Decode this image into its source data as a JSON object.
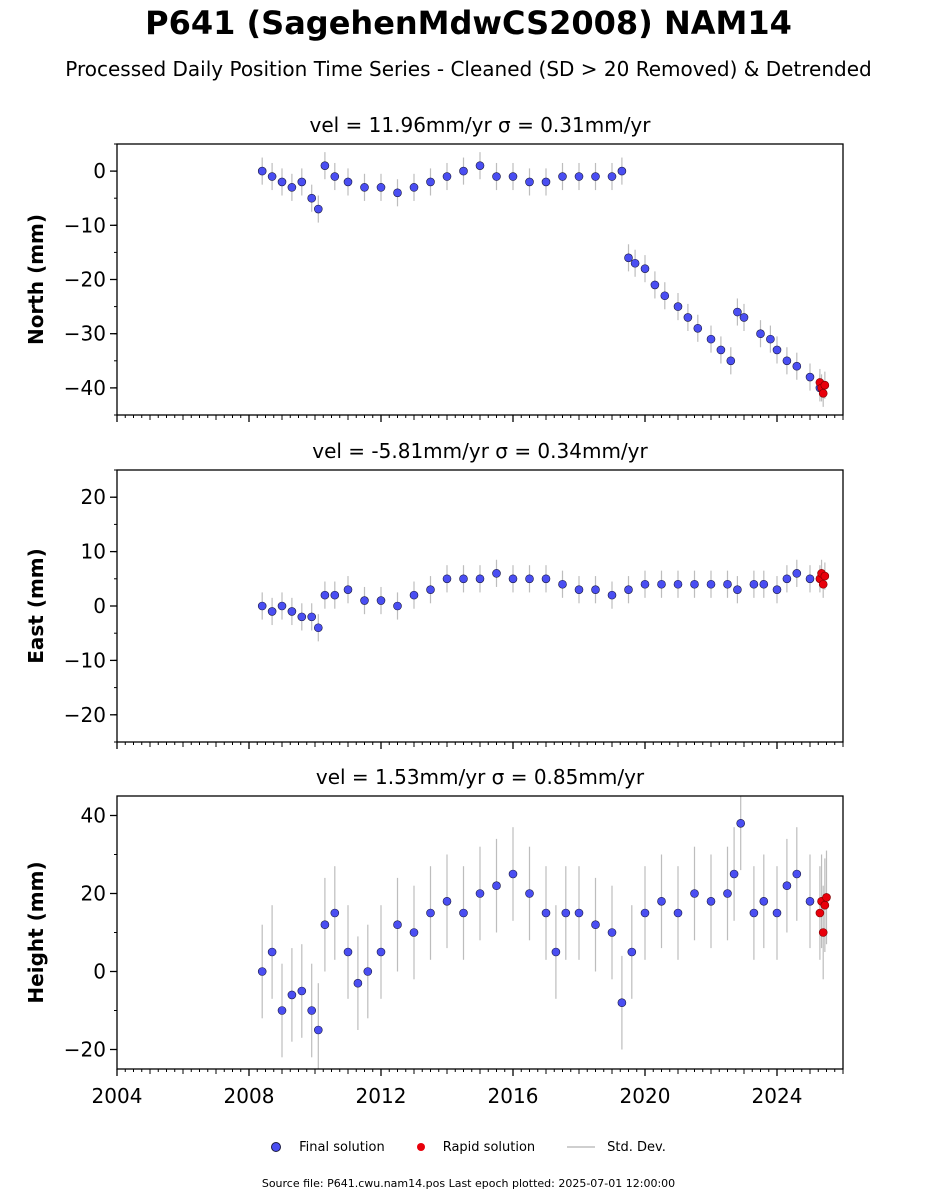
{
  "title": "P641 (SagehenMdwCS2008) NAM14",
  "subtitle": "Processed Daily Position Time Series - Cleaned (SD > 20 Removed) & Detrended",
  "legend": {
    "final_label": "Final solution",
    "rapid_label": "Rapid solution",
    "std_label": "Std. Dev."
  },
  "footer": "Source file: P641.cwu.nam14.pos  Last epoch plotted: 2025-07-01 12:00:00",
  "colors": {
    "final": "#4a4ef2",
    "final_edge": "#1a1a40",
    "rapid": "#e8000b",
    "std_dev": "#bdbdbd"
  },
  "chart_data": [
    {
      "type": "scatter",
      "title": "vel = 11.96mm/yr   σ = 0.31mm/yr",
      "ylabel": "North (mm)",
      "xlim": [
        2004,
        2026
      ],
      "ylim": [
        -45,
        5
      ],
      "yticks": [
        0,
        -10,
        -20,
        -30,
        -40
      ],
      "ytick_labels": [
        "0",
        "−10",
        "−20",
        "−30",
        "−40"
      ],
      "series": [
        {
          "name": "Final solution",
          "x": [
            2008.4,
            2008.7,
            2009.0,
            2009.3,
            2009.6,
            2009.9,
            2010.1,
            2010.3,
            2010.6,
            2011.0,
            2011.5,
            2012.0,
            2012.5,
            2013.0,
            2013.5,
            2014.0,
            2014.5,
            2015.0,
            2015.5,
            2016.0,
            2016.5,
            2017.0,
            2017.5,
            2018.0,
            2018.5,
            2019.0,
            2019.3,
            2019.5,
            2019.7,
            2020.0,
            2020.3,
            2020.6,
            2021.0,
            2021.3,
            2021.6,
            2022.0,
            2022.3,
            2022.6,
            2022.8,
            2023.0,
            2023.5,
            2023.8,
            2024.0,
            2024.3,
            2024.6,
            2025.0,
            2025.3
          ],
          "y": [
            0,
            -1,
            -2,
            -3,
            -2,
            -5,
            -7,
            1,
            -1,
            -2,
            -3,
            -3,
            -4,
            -3,
            -2,
            -1,
            0,
            1,
            -1,
            -1,
            -2,
            -2,
            -1,
            -1,
            -1,
            -1,
            0,
            -16,
            -17,
            -18,
            -21,
            -23,
            -25,
            -27,
            -29,
            -31,
            -33,
            -35,
            -26,
            -27,
            -30,
            -31,
            -33,
            -35,
            -36,
            -38,
            -40
          ]
        },
        {
          "name": "Rapid solution",
          "x": [
            2025.3,
            2025.35,
            2025.4,
            2025.45
          ],
          "y": [
            -39,
            -40,
            -41,
            -39.5
          ]
        }
      ]
    },
    {
      "type": "scatter",
      "title": "vel = -5.81mm/yr   σ = 0.34mm/yr",
      "ylabel": "East (mm)",
      "xlim": [
        2004,
        2026
      ],
      "ylim": [
        -25,
        25
      ],
      "yticks": [
        20,
        10,
        0,
        -10,
        -20
      ],
      "ytick_labels": [
        "20",
        "10",
        "0",
        "−10",
        "−20"
      ],
      "series": [
        {
          "name": "Final solution",
          "x": [
            2008.4,
            2008.7,
            2009.0,
            2009.3,
            2009.6,
            2009.9,
            2010.1,
            2010.3,
            2010.6,
            2011.0,
            2011.5,
            2012.0,
            2012.5,
            2013.0,
            2013.5,
            2014.0,
            2014.5,
            2015.0,
            2015.5,
            2016.0,
            2016.5,
            2017.0,
            2017.5,
            2018.0,
            2018.5,
            2019.0,
            2019.5,
            2020.0,
            2020.5,
            2021.0,
            2021.5,
            2022.0,
            2022.5,
            2022.8,
            2023.3,
            2023.6,
            2024.0,
            2024.3,
            2024.6,
            2025.0
          ],
          "y": [
            0,
            -1,
            0,
            -1,
            -2,
            -2,
            -4,
            2,
            2,
            3,
            1,
            1,
            0,
            2,
            3,
            5,
            5,
            5,
            6,
            5,
            5,
            5,
            4,
            3,
            3,
            2,
            3,
            4,
            4,
            4,
            4,
            4,
            4,
            3,
            4,
            4,
            3,
            5,
            6,
            5
          ]
        },
        {
          "name": "Rapid solution",
          "x": [
            2025.3,
            2025.35,
            2025.4,
            2025.45
          ],
          "y": [
            5,
            6,
            4,
            5.5
          ]
        }
      ]
    },
    {
      "type": "scatter",
      "title": "vel = 1.53mm/yr   σ = 0.85mm/yr",
      "ylabel": "Height (mm)",
      "xlim": [
        2004,
        2026
      ],
      "ylim": [
        -25,
        45
      ],
      "yticks": [
        40,
        20,
        0,
        -20
      ],
      "ytick_labels": [
        "40",
        "20",
        "0",
        "−20"
      ],
      "xticks": [
        2004,
        2008,
        2012,
        2016,
        2020,
        2024
      ],
      "xtick_labels": [
        "2004",
        "2008",
        "2012",
        "2016",
        "2020",
        "2024"
      ],
      "series": [
        {
          "name": "Final solution",
          "x": [
            2008.4,
            2008.7,
            2009.0,
            2009.3,
            2009.6,
            2009.9,
            2010.1,
            2010.3,
            2010.6,
            2011.0,
            2011.3,
            2011.6,
            2012.0,
            2012.5,
            2013.0,
            2013.5,
            2014.0,
            2014.5,
            2015.0,
            2015.5,
            2016.0,
            2016.5,
            2017.0,
            2017.3,
            2017.6,
            2018.0,
            2018.5,
            2019.0,
            2019.3,
            2019.6,
            2020.0,
            2020.5,
            2021.0,
            2021.5,
            2022.0,
            2022.5,
            2022.7,
            2022.9,
            2023.3,
            2023.6,
            2024.0,
            2024.3,
            2024.6,
            2025.0
          ],
          "y": [
            0,
            5,
            -10,
            -6,
            -5,
            -10,
            -15,
            12,
            15,
            5,
            -3,
            0,
            5,
            12,
            10,
            15,
            18,
            15,
            20,
            22,
            25,
            20,
            15,
            5,
            15,
            15,
            12,
            10,
            -8,
            5,
            15,
            18,
            15,
            20,
            18,
            20,
            25,
            38,
            15,
            18,
            15,
            22,
            25,
            18
          ]
        },
        {
          "name": "Rapid solution",
          "x": [
            2025.3,
            2025.35,
            2025.4,
            2025.45,
            2025.5
          ],
          "y": [
            15,
            18,
            10,
            17,
            19
          ]
        }
      ]
    }
  ]
}
